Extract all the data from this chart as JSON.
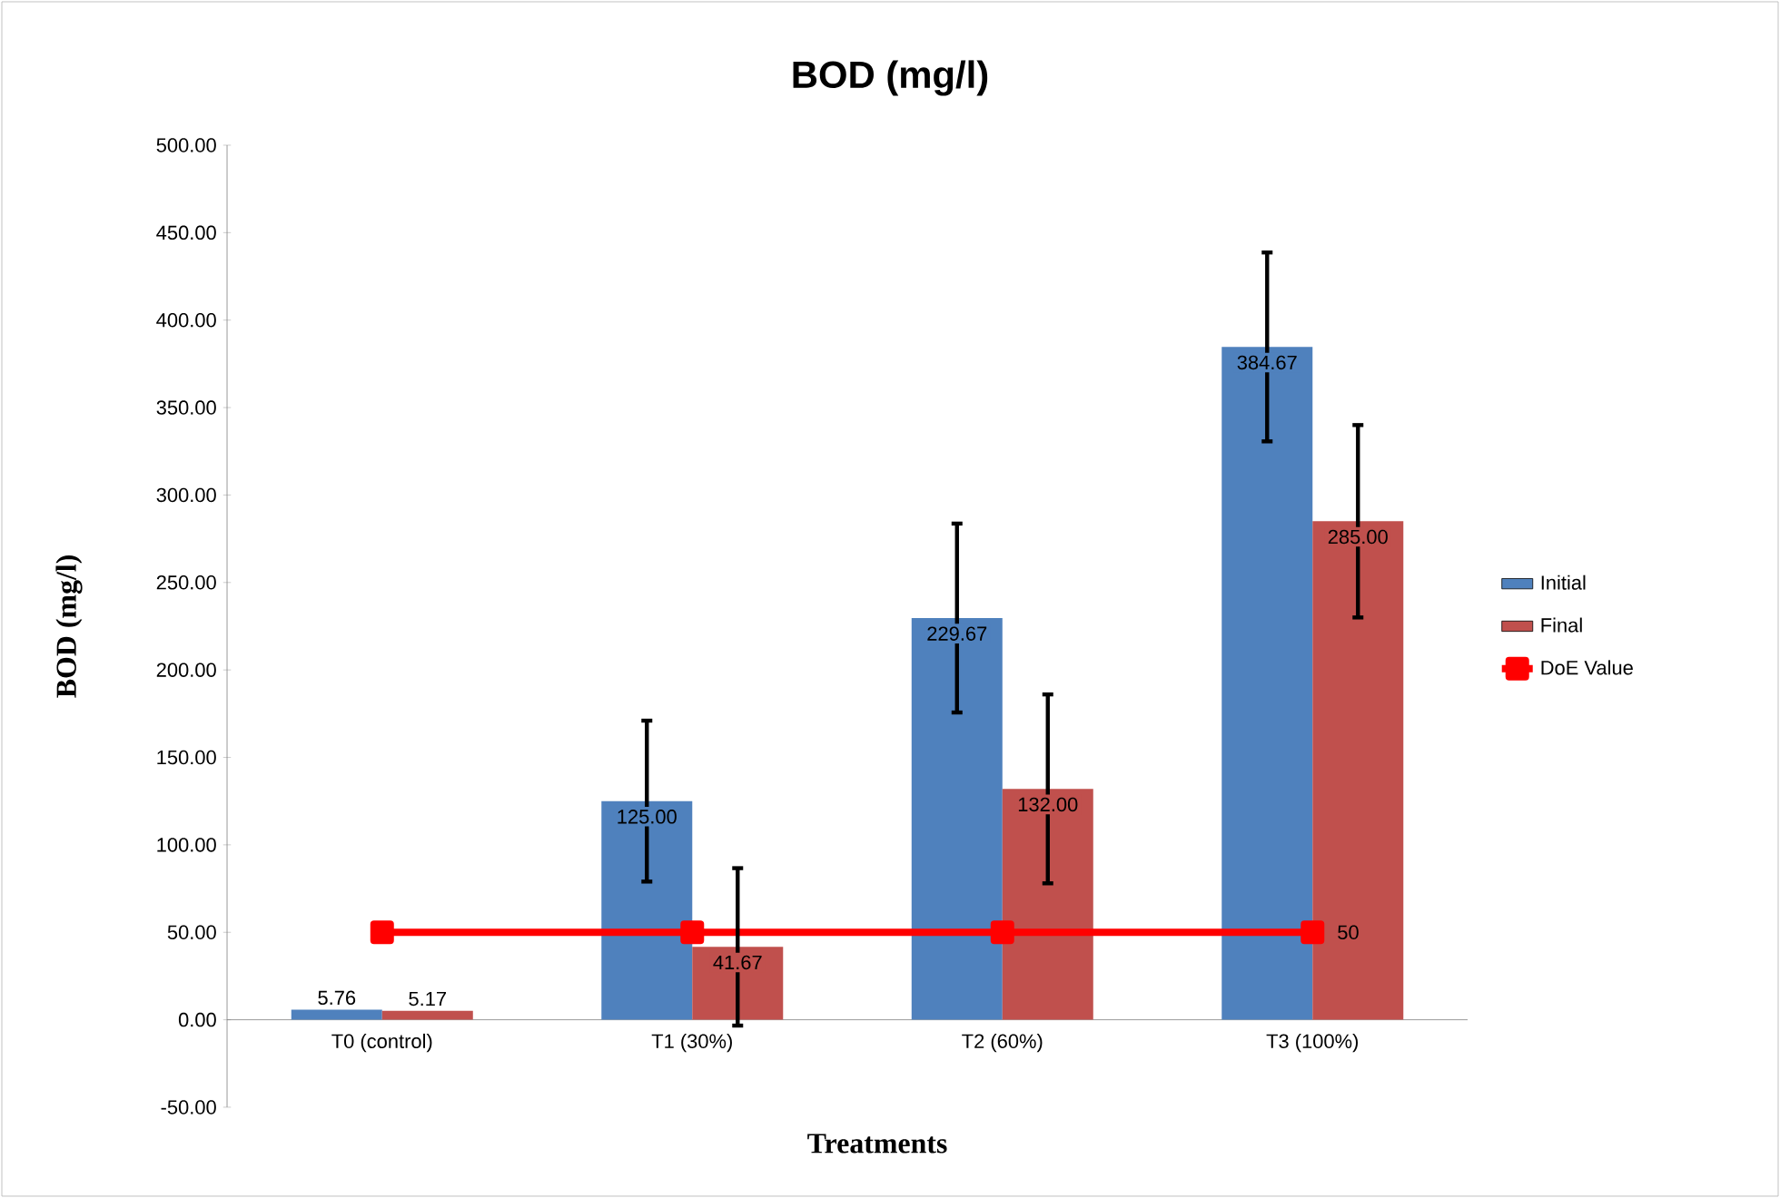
{
  "chart_data": {
    "type": "bar",
    "title": "BOD (mg/l)",
    "xlabel": "Treatments",
    "ylabel": "BOD (mg/l)",
    "categories": [
      "T0 (control)",
      "T1 (30%)",
      "T2 (60%)",
      "T3 (100%)"
    ],
    "series": [
      {
        "name": "Initial",
        "color": "#4f81bd",
        "values": [
          5.76,
          125.0,
          229.67,
          384.67
        ],
        "errors": [
          null,
          46,
          54,
          54
        ],
        "value_labels": [
          "5.76",
          "125.00",
          "229.67",
          "384.67"
        ]
      },
      {
        "name": "Final",
        "color": "#c0504d",
        "values": [
          5.17,
          41.67,
          132.0,
          285.0
        ],
        "errors": [
          null,
          45,
          54,
          55
        ],
        "value_labels": [
          "5.17",
          "41.67",
          "132.00",
          "285.00"
        ]
      },
      {
        "name": "DoE Value",
        "type": "line",
        "color": "#ff0000",
        "marker": "square",
        "values": [
          50,
          50,
          50,
          50
        ],
        "value_labels": [
          null,
          null,
          null,
          "50"
        ]
      }
    ],
    "ylim": [
      -50,
      500
    ],
    "yticks": [
      {
        "value": -50,
        "label": "-50.00"
      },
      {
        "value": 0,
        "label": "0.00"
      },
      {
        "value": 50,
        "label": "50.00"
      },
      {
        "value": 100,
        "label": "100.00"
      },
      {
        "value": 150,
        "label": "150.00"
      },
      {
        "value": 200,
        "label": "200.00"
      },
      {
        "value": 250,
        "label": "250.00"
      },
      {
        "value": 300,
        "label": "300.00"
      },
      {
        "value": 350,
        "label": "350.00"
      },
      {
        "value": 400,
        "label": "400.00"
      },
      {
        "value": 450,
        "label": "450.00"
      },
      {
        "value": 500,
        "label": "500.00"
      }
    ],
    "legend": "right",
    "grid": false
  }
}
